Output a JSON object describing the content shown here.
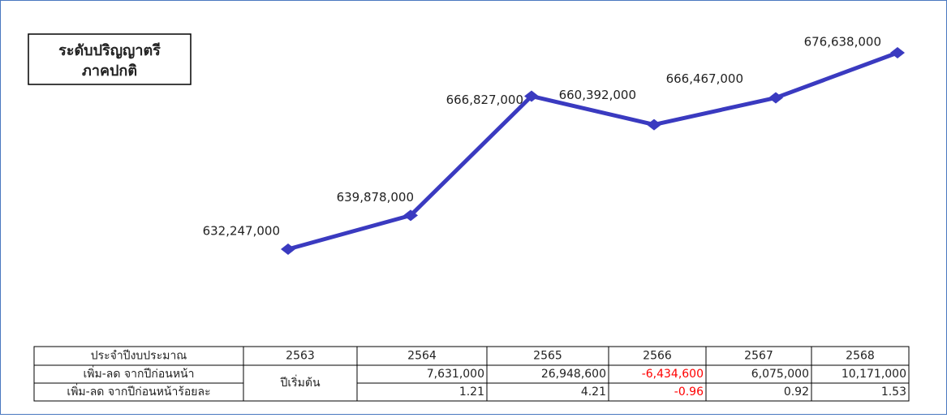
{
  "chart_data": {
    "type": "line",
    "title": [
      "ระดับปริญญาตรี",
      "ภาคปกติ"
    ],
    "categories": [
      "2563",
      "2564",
      "2565",
      "2566",
      "2567",
      "2568"
    ],
    "values": [
      632247000,
      639878000,
      666827000,
      660392000,
      666467000,
      676638000
    ],
    "value_labels": [
      "632,247,000",
      "639,878,000",
      "666,827,000",
      "660,392,000",
      "666,467,000",
      "676,638,000"
    ],
    "color": "#3a3ac0"
  },
  "table": {
    "header": [
      "ประจำปีงบประมาณ",
      "2563",
      "2564",
      "2565",
      "2566",
      "2567",
      "2568"
    ],
    "merged": "ปีเริ่มต้น",
    "rows": [
      [
        "เพิ่ม-ลด จากปีก่อนหน้า",
        "7,631,000",
        "26,948,600",
        "-6,434,600",
        "6,075,000",
        "10,171,000"
      ],
      [
        "เพิ่ม-ลด จากปีก่อนหน้าร้อยละ",
        "1.21",
        "4.21",
        "-0.96",
        "0.92",
        "1.53"
      ]
    ],
    "negative_color": "#ff0000"
  }
}
